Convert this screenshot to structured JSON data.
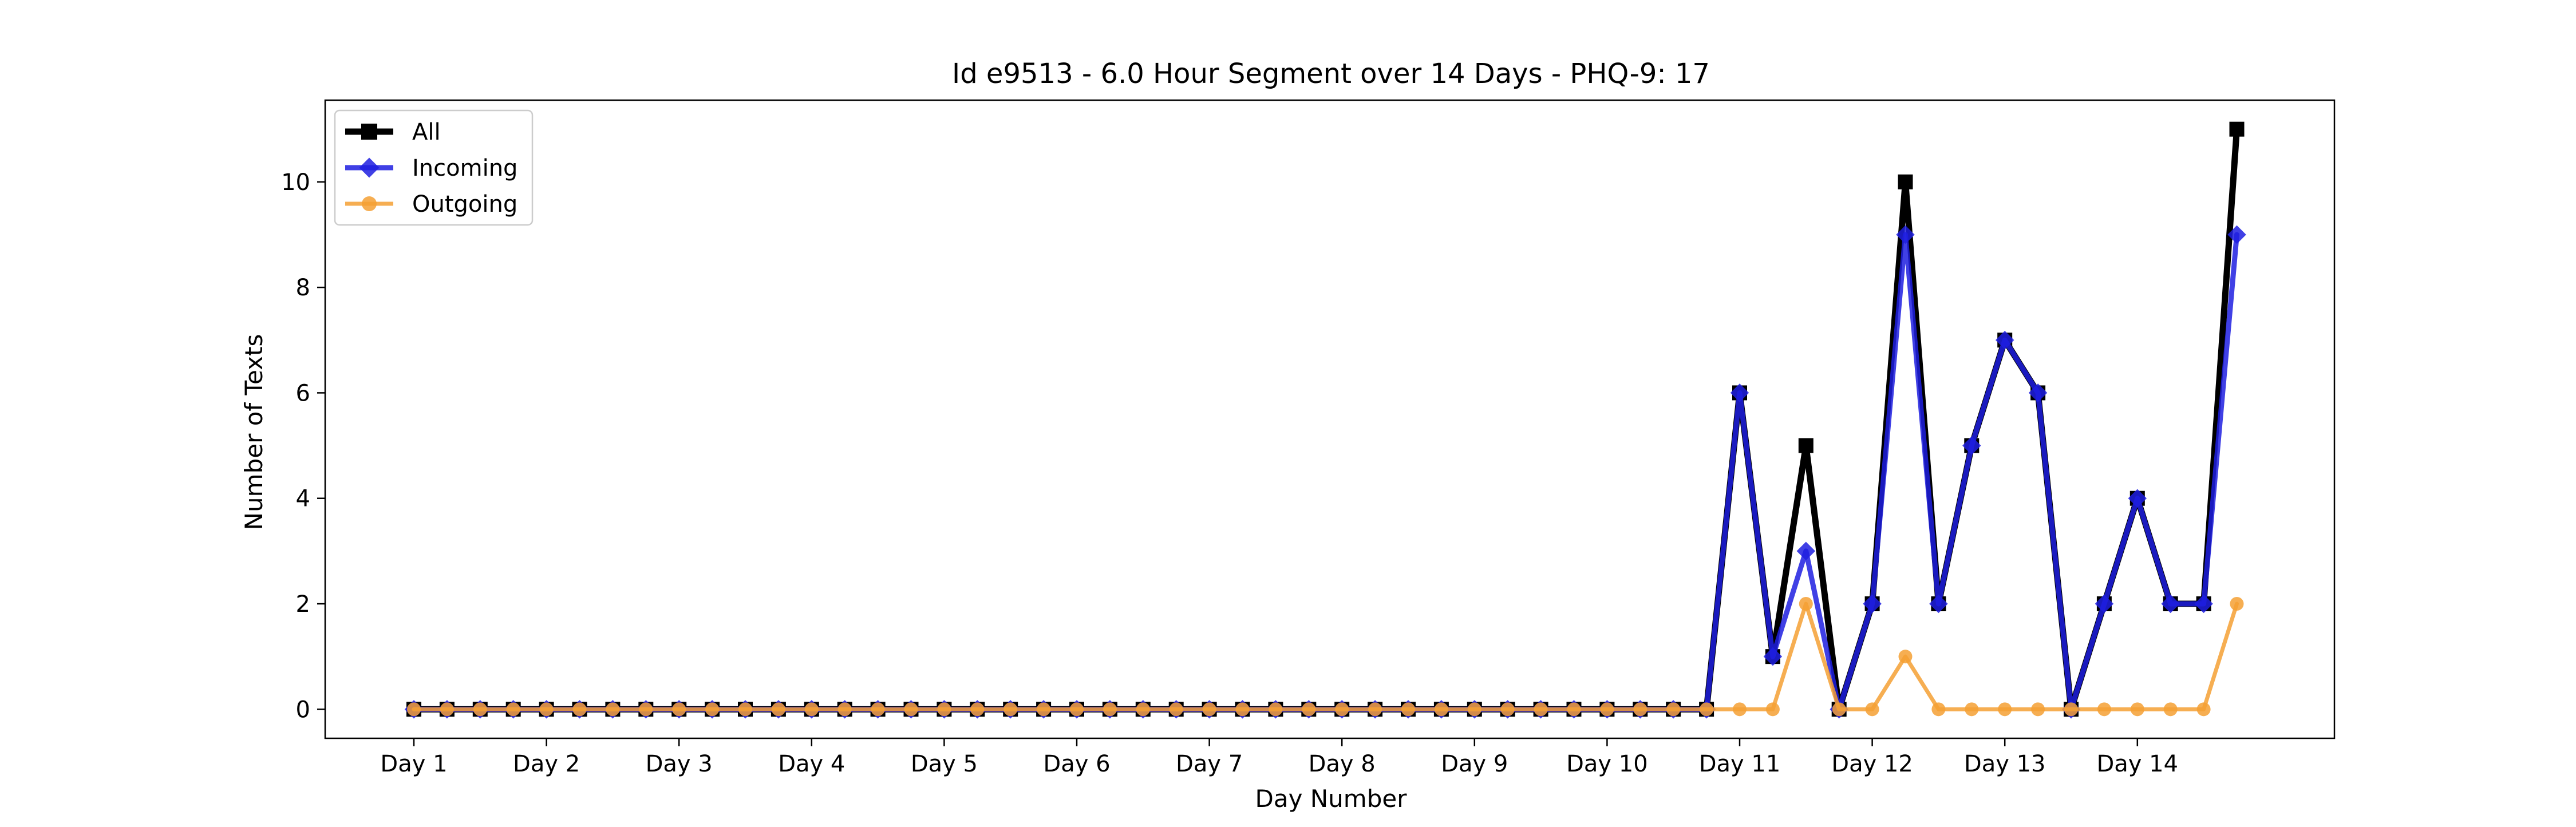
{
  "chart_data": {
    "type": "line",
    "title": "Id e9513 - 6.0 Hour Segment over 14 Days - PHQ-9: 17",
    "xlabel": "Day Number",
    "ylabel": "Number of Texts",
    "x_tick_labels": [
      "Day 1",
      "Day 2",
      "Day 3",
      "Day 4",
      "Day 5",
      "Day 6",
      "Day 7",
      "Day 8",
      "Day 9",
      "Day 10",
      "Day 11",
      "Day 12",
      "Day 13",
      "Day 14"
    ],
    "y_ticks": [
      0,
      2,
      4,
      6,
      8,
      10
    ],
    "ylim": [
      -0.55,
      11.55
    ],
    "segments_per_day": 4,
    "grid": false,
    "legend_position": "top-left",
    "series": [
      {
        "name": "All",
        "color": "#000000",
        "marker": "square",
        "values": [
          0,
          0,
          0,
          0,
          0,
          0,
          0,
          0,
          0,
          0,
          0,
          0,
          0,
          0,
          0,
          0,
          0,
          0,
          0,
          0,
          0,
          0,
          0,
          0,
          0,
          0,
          0,
          0,
          0,
          0,
          0,
          0,
          0,
          0,
          0,
          0,
          0,
          0,
          0,
          0,
          6,
          1,
          5,
          0,
          2,
          10,
          2,
          5,
          7,
          6,
          0,
          2,
          4,
          2,
          2,
          11
        ]
      },
      {
        "name": "Incoming",
        "color": "#1f1fe0",
        "marker": "diamond",
        "values": [
          0,
          0,
          0,
          0,
          0,
          0,
          0,
          0,
          0,
          0,
          0,
          0,
          0,
          0,
          0,
          0,
          0,
          0,
          0,
          0,
          0,
          0,
          0,
          0,
          0,
          0,
          0,
          0,
          0,
          0,
          0,
          0,
          0,
          0,
          0,
          0,
          0,
          0,
          0,
          0,
          6,
          1,
          3,
          0,
          2,
          9,
          2,
          5,
          7,
          6,
          0,
          2,
          4,
          2,
          2,
          9
        ]
      },
      {
        "name": "Outgoing",
        "color": "#f5a034",
        "marker": "circle",
        "values": [
          0,
          0,
          0,
          0,
          0,
          0,
          0,
          0,
          0,
          0,
          0,
          0,
          0,
          0,
          0,
          0,
          0,
          0,
          0,
          0,
          0,
          0,
          0,
          0,
          0,
          0,
          0,
          0,
          0,
          0,
          0,
          0,
          0,
          0,
          0,
          0,
          0,
          0,
          0,
          0,
          0,
          0,
          2,
          0,
          0,
          1,
          0,
          0,
          0,
          0,
          0,
          0,
          0,
          0,
          0,
          2
        ]
      }
    ]
  }
}
